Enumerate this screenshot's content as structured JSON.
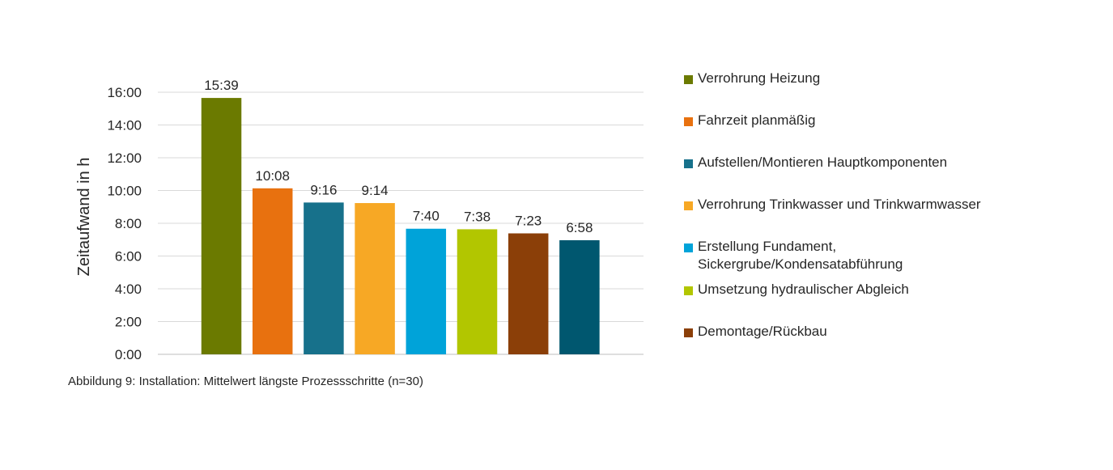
{
  "chart_data": {
    "type": "bar",
    "title": "",
    "xlabel": "",
    "ylabel": "Zeitaufwand in h",
    "ylim_hours": [
      0,
      16
    ],
    "y_ticks": [
      "0:00",
      "2:00",
      "4:00",
      "6:00",
      "8:00",
      "10:00",
      "12:00",
      "14:00",
      "16:00"
    ],
    "grid": true,
    "legend_position": "right",
    "categories": [
      "Verrohrung Heizung",
      "Fahrzeit planmäßig",
      "Aufstellen/Montieren Hauptkomponenten",
      "Verrohrung Trinkwasser und Trinkwarmwasser",
      "Erstellung Fundament,\nSickergrube/Kondensatabführung",
      "Umsetzung hydraulischer Abgleich",
      "Demontage/Rückbau",
      ""
    ],
    "values_hours": [
      15.65,
      10.1333,
      9.2667,
      9.2333,
      7.6667,
      7.6333,
      7.3833,
      6.9667
    ],
    "value_labels": [
      "15:39",
      "10:08",
      "9:16",
      "9:14",
      "7:40",
      "7:38",
      "7:23",
      "6:58"
    ],
    "colors": [
      "#6B7A00",
      "#E8710F",
      "#17718B",
      "#F7A825",
      "#00A3D9",
      "#B2C600",
      "#8B3F08",
      "#00576F"
    ]
  },
  "legend_items": [
    {
      "label": "Verrohrung Heizung",
      "color": "#6B7A00",
      "offset_top": 0
    },
    {
      "label": "Fahrzeit planmäßig",
      "color": "#E8710F",
      "offset_top": 52
    },
    {
      "label": "Aufstellen/Montieren Hauptkomponenten",
      "color": "#17718B",
      "offset_top": 104
    },
    {
      "label": "Verrohrung Trinkwasser und Trinkwarmwasser",
      "color": "#F7A825",
      "offset_top": 156
    },
    {
      "label": "Erstellung Fundament,\nSickergrube/Kondensatabführung",
      "color": "#00A3D9",
      "offset_top": 208
    },
    {
      "label": "Umsetzung hydraulischer Abgleich",
      "color": "#B2C600",
      "offset_top": 261
    },
    {
      "label": "Demontage/Rückbau",
      "color": "#8B3F08",
      "offset_top": 313
    }
  ],
  "caption": "Abbildung 9: Installation: Mittelwert längste Prozessschritte (n=30)"
}
